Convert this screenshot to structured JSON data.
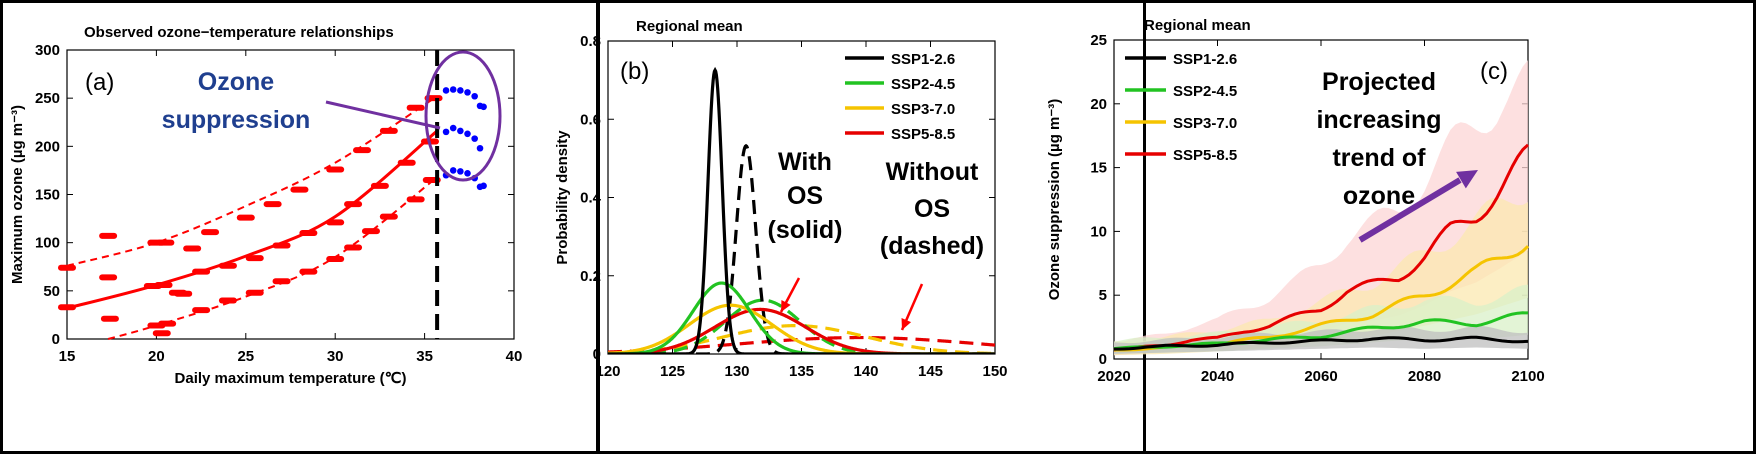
{
  "chart_data": [
    {
      "id": "a",
      "type": "scatter",
      "panel_label": "(a)",
      "title": "Observed ozone−temperature relationships",
      "xlabel": "Daily maximum temperature (℃)",
      "ylabel": "Maximum ozone (µg m⁻³)",
      "xlim": [
        15,
        40
      ],
      "ylim": [
        0,
        300
      ],
      "xticks": [
        "15",
        "20",
        "25",
        "30",
        "35",
        "40"
      ],
      "yticks": [
        "0",
        "50",
        "100",
        "150",
        "200",
        "250",
        "300"
      ],
      "annotation": [
        "Ozone",
        "suppression"
      ],
      "threshold_x": 35.7,
      "colors": {
        "points": "#ff0000",
        "suppressed": "#0000ff",
        "ellipse": "#7030a0",
        "arrow": "#7030a0",
        "threshold": "#000000"
      },
      "fit_lines": [
        {
          "role": "upper",
          "style": "dashed",
          "x": [
            15,
            20,
            25,
            30,
            35.7
          ],
          "y": [
            76,
            100,
            138,
            183,
            252
          ]
        },
        {
          "role": "median",
          "style": "solid",
          "x": [
            15,
            20,
            25,
            30,
            35.7
          ],
          "y": [
            32,
            56,
            86,
            127,
            216
          ]
        },
        {
          "role": "lower",
          "style": "dashed",
          "x": [
            17.3,
            20,
            25,
            30,
            35.7
          ],
          "y": [
            0,
            14,
            44,
            85,
            168
          ]
        }
      ],
      "red_points": [
        {
          "x": 15.0,
          "y": 74
        },
        {
          "x": 15.0,
          "y": 33
        },
        {
          "x": 17.3,
          "y": 107
        },
        {
          "x": 17.3,
          "y": 64
        },
        {
          "x": 17.4,
          "y": 21
        },
        {
          "x": 20.0,
          "y": 100
        },
        {
          "x": 20.5,
          "y": 100
        },
        {
          "x": 19.8,
          "y": 55
        },
        {
          "x": 20.4,
          "y": 56
        },
        {
          "x": 20.0,
          "y": 14
        },
        {
          "x": 20.3,
          "y": 6
        },
        {
          "x": 20.6,
          "y": 16
        },
        {
          "x": 21.2,
          "y": 48
        },
        {
          "x": 21.5,
          "y": 47
        },
        {
          "x": 22.0,
          "y": 94
        },
        {
          "x": 23.0,
          "y": 111
        },
        {
          "x": 25.0,
          "y": 126
        },
        {
          "x": 26.5,
          "y": 140
        },
        {
          "x": 28.0,
          "y": 155
        },
        {
          "x": 30.0,
          "y": 176
        },
        {
          "x": 31.5,
          "y": 196
        },
        {
          "x": 33.0,
          "y": 216
        },
        {
          "x": 34.5,
          "y": 240
        },
        {
          "x": 35.5,
          "y": 250
        },
        {
          "x": 22.5,
          "y": 70
        },
        {
          "x": 24.0,
          "y": 76
        },
        {
          "x": 25.5,
          "y": 84
        },
        {
          "x": 27.0,
          "y": 97
        },
        {
          "x": 28.5,
          "y": 110
        },
        {
          "x": 30.0,
          "y": 121
        },
        {
          "x": 31.0,
          "y": 140
        },
        {
          "x": 32.5,
          "y": 159
        },
        {
          "x": 34.0,
          "y": 183
        },
        {
          "x": 35.3,
          "y": 205
        },
        {
          "x": 22.5,
          "y": 30
        },
        {
          "x": 24.0,
          "y": 40
        },
        {
          "x": 25.5,
          "y": 48
        },
        {
          "x": 27.0,
          "y": 60
        },
        {
          "x": 28.5,
          "y": 70
        },
        {
          "x": 30.0,
          "y": 83
        },
        {
          "x": 31.0,
          "y": 95
        },
        {
          "x": 32.0,
          "y": 112
        },
        {
          "x": 33.0,
          "y": 127
        },
        {
          "x": 34.5,
          "y": 145
        },
        {
          "x": 35.4,
          "y": 165
        }
      ],
      "blue_points": [
        {
          "x": 36.2,
          "y": 258
        },
        {
          "x": 36.6,
          "y": 259
        },
        {
          "x": 37.0,
          "y": 258
        },
        {
          "x": 37.4,
          "y": 256
        },
        {
          "x": 37.8,
          "y": 252
        },
        {
          "x": 38.1,
          "y": 242
        },
        {
          "x": 38.3,
          "y": 241
        },
        {
          "x": 36.2,
          "y": 215
        },
        {
          "x": 36.6,
          "y": 219
        },
        {
          "x": 37.0,
          "y": 216
        },
        {
          "x": 37.4,
          "y": 213
        },
        {
          "x": 37.8,
          "y": 208
        },
        {
          "x": 38.1,
          "y": 198
        },
        {
          "x": 36.2,
          "y": 170
        },
        {
          "x": 36.6,
          "y": 175
        },
        {
          "x": 37.0,
          "y": 174
        },
        {
          "x": 37.4,
          "y": 172
        },
        {
          "x": 37.8,
          "y": 167
        },
        {
          "x": 38.1,
          "y": 158
        },
        {
          "x": 38.3,
          "y": 159
        }
      ]
    },
    {
      "id": "b",
      "type": "line",
      "panel_label": "(b)",
      "title": "Regional mean",
      "xlabel": "",
      "ylabel": "Probability density",
      "xlim": [
        120,
        150
      ],
      "ylim": [
        0,
        0.8
      ],
      "xticks": [
        "120",
        "125",
        "130",
        "135",
        "140",
        "145",
        "150"
      ],
      "yticks": [
        "0",
        "0.2",
        "0.4",
        "0.6",
        "0.8"
      ],
      "legend": {
        "position": "top-right"
      },
      "annotations": {
        "with_os": [
          "With",
          "OS",
          "(solid)"
        ],
        "without_os": [
          "Without",
          "OS",
          "(dashed)"
        ]
      },
      "arrow_color": "#ff0000",
      "series": [
        {
          "name": "SSP1-2.6",
          "color": "#000000",
          "solid": {
            "mean": 128.3,
            "sd": 0.55
          },
          "dashed": {
            "mean": 130.7,
            "sd": 0.75
          }
        },
        {
          "name": "SSP2-4.5",
          "color": "#22c322",
          "solid": {
            "mean": 128.8,
            "sd": 2.2
          },
          "dashed": {
            "mean": 132.0,
            "sd": 2.9
          }
        },
        {
          "name": "SSP3-7.0",
          "color": "#f5c400",
          "solid": {
            "mean": 129.5,
            "sd": 3.2
          },
          "dashed": {
            "mean": 134.5,
            "sd": 5.5
          }
        },
        {
          "name": "SSP5-8.5",
          "color": "#e60000",
          "solid": {
            "mean": 131.8,
            "sd": 3.5
          },
          "dashed": {
            "mean": 139.5,
            "sd": 9.5
          }
        }
      ]
    },
    {
      "id": "c",
      "type": "area",
      "panel_label": "(c)",
      "title": "Regional mean",
      "xlabel": "",
      "ylabel": "Ozone suppression (µg m⁻³)",
      "xlim": [
        2020,
        2100
      ],
      "ylim": [
        0,
        25
      ],
      "xticks": [
        "2020",
        "2040",
        "2060",
        "2080",
        "2100"
      ],
      "yticks": [
        "0",
        "5",
        "10",
        "15",
        "20",
        "25"
      ],
      "legend": {
        "position": "top-left"
      },
      "annotation": [
        "Projected",
        "increasing",
        "trend of",
        "ozone"
      ],
      "arrow_color": "#7030a0",
      "series": [
        {
          "name": "SSP1-2.6",
          "color": "#000000",
          "band": "#bfbfbf",
          "x": [
            2020,
            2030,
            2040,
            2050,
            2060,
            2070,
            2080,
            2090,
            2100
          ],
          "y": [
            0.8,
            1.0,
            1.1,
            1.3,
            1.4,
            1.6,
            1.5,
            1.6,
            1.4
          ],
          "lower": [
            0.4,
            0.5,
            0.6,
            0.7,
            0.8,
            0.9,
            0.8,
            0.9,
            0.8
          ],
          "upper": [
            1.3,
            1.5,
            1.7,
            2.0,
            2.1,
            2.4,
            2.3,
            2.4,
            2.2
          ]
        },
        {
          "name": "SSP2-4.5",
          "color": "#22c322",
          "band": "#d9f0c8",
          "x": [
            2020,
            2030,
            2040,
            2050,
            2060,
            2070,
            2080,
            2090,
            2100
          ],
          "y": [
            0.8,
            1.0,
            1.2,
            1.5,
            1.8,
            2.4,
            2.9,
            2.8,
            3.5
          ],
          "lower": [
            0.4,
            0.5,
            0.6,
            0.8,
            1.0,
            1.3,
            1.6,
            1.5,
            1.9
          ],
          "upper": [
            1.4,
            1.7,
            2.0,
            2.5,
            3.0,
            3.9,
            4.6,
            4.5,
            5.4
          ]
        },
        {
          "name": "SSP3-7.0",
          "color": "#f5c400",
          "band": "#fbe8b0",
          "x": [
            2020,
            2030,
            2040,
            2050,
            2060,
            2070,
            2080,
            2090,
            2100
          ],
          "y": [
            0.7,
            0.9,
            1.2,
            1.7,
            2.6,
            3.5,
            5.0,
            6.8,
            9.3
          ],
          "lower": [
            0.3,
            0.4,
            0.6,
            0.9,
            1.3,
            1.8,
            2.6,
            3.5,
            4.8
          ],
          "upper": [
            1.3,
            1.7,
            2.3,
            3.0,
            4.5,
            6.0,
            8.2,
            10.8,
            13.5
          ]
        },
        {
          "name": "SSP5-8.5",
          "color": "#e60000",
          "band": "#fcd5d5",
          "x": [
            2020,
            2025,
            2030,
            2035,
            2040,
            2045,
            2050,
            2055,
            2060,
            2065,
            2070,
            2075,
            2080,
            2085,
            2090,
            2095,
            2100
          ],
          "y": [
            0.7,
            0.9,
            1.1,
            1.5,
            1.6,
            2.2,
            2.6,
            3.3,
            4.0,
            5.3,
            5.8,
            6.5,
            8.0,
            10.0,
            11.4,
            13.5,
            15.8
          ],
          "lower": [
            0.3,
            0.4,
            0.5,
            0.7,
            0.8,
            1.1,
            1.3,
            1.7,
            2.1,
            2.8,
            3.0,
            3.4,
            4.2,
            5.3,
            6.0,
            7.2,
            8.5
          ],
          "upper": [
            1.3,
            1.6,
            2.0,
            2.6,
            3.0,
            4.0,
            4.8,
            6.0,
            7.5,
            9.5,
            10.5,
            11.8,
            14.0,
            16.5,
            18.5,
            20.5,
            21.5
          ]
        }
      ]
    }
  ]
}
